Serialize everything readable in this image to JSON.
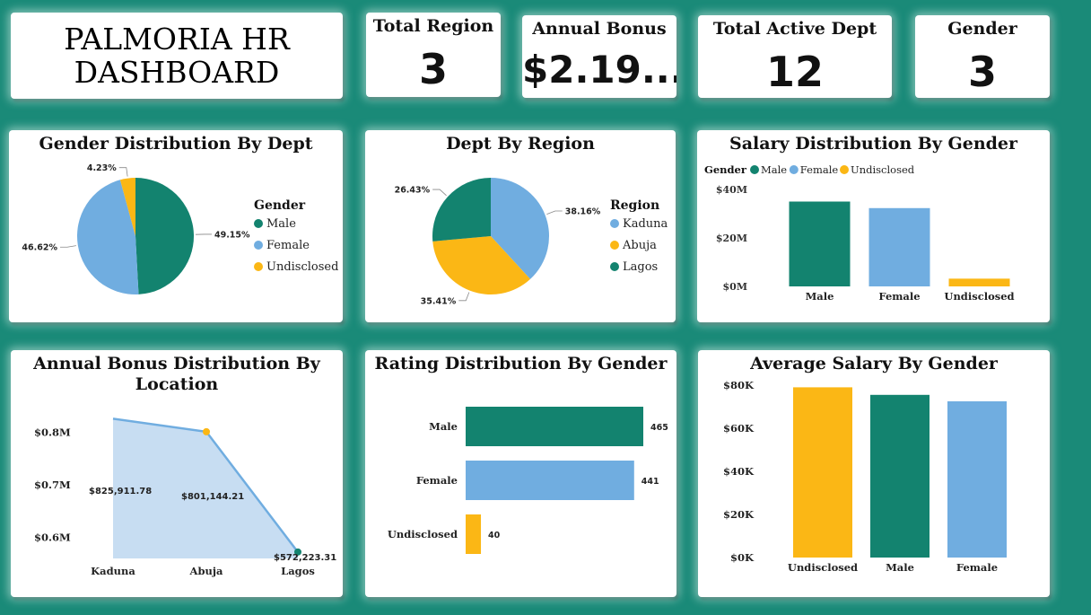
{
  "dashboard_title": "PALMORIA HR DASHBOARD",
  "colors": {
    "male": "#13836f",
    "female": "#70ade0",
    "undisclosed": "#fbb715",
    "kaduna": "#70ade0",
    "abuja": "#fbb715",
    "lagos": "#13836f",
    "area_fill": "#c7ddf2",
    "line": "#70ade0"
  },
  "kpis": [
    {
      "label": "Total Region",
      "value": "3"
    },
    {
      "label": "Annual Bonus",
      "value": "$2.19..."
    },
    {
      "label": "Total Active Dept",
      "value": "12"
    },
    {
      "label": "Gender",
      "value": "3"
    }
  ],
  "chart_data": [
    {
      "type": "pie",
      "title": "Gender Distribution By Dept",
      "legend_title": "Gender",
      "legend_placement": "right",
      "slices": [
        {
          "label": "Male",
          "value": 49.15,
          "value_label": "49.15%"
        },
        {
          "label": "Female",
          "value": 46.62,
          "value_label": "46.62%"
        },
        {
          "label": "Undisclosed",
          "value": 4.23,
          "value_label": "4.23%"
        }
      ]
    },
    {
      "type": "pie",
      "title": "Dept By Region",
      "legend_title": "Region",
      "legend_placement": "right",
      "slices": [
        {
          "label": "Kaduna",
          "value": 38.16,
          "value_label": "38.16%"
        },
        {
          "label": "Abuja",
          "value": 35.41,
          "value_label": "35.41%"
        },
        {
          "label": "Lagos",
          "value": 26.43,
          "value_label": "26.43%"
        }
      ]
    },
    {
      "type": "bar",
      "title": "Salary Distribution By Gender",
      "legend_title": "Gender",
      "legend_placement": "top-left",
      "categories": [
        "Male",
        "Female",
        "Undisclosed"
      ],
      "values": [
        35000000,
        32300000,
        3200000
      ],
      "ylim": [
        0,
        40000000
      ],
      "yticks": [
        {
          "value": 0,
          "label": "$0M"
        },
        {
          "value": 20000000,
          "label": "$20M"
        },
        {
          "value": 40000000,
          "label": "$40M"
        }
      ],
      "grid": false
    },
    {
      "type": "area",
      "title": "Annual Bonus Distribution By Location",
      "categories": [
        "Kaduna",
        "Abuja",
        "Lagos"
      ],
      "values": [
        825911.78,
        801144.21,
        572223.31
      ],
      "value_labels": [
        "$825,911.78",
        "$801,144.21",
        "$572,223.31"
      ],
      "ylim": [
        560000,
        830000
      ],
      "yticks": [
        {
          "value": 600000,
          "label": "$0.6M"
        },
        {
          "value": 700000,
          "label": "$0.7M"
        },
        {
          "value": 800000,
          "label": "$0.8M"
        }
      ],
      "grid": false
    },
    {
      "type": "bar",
      "orientation": "horizontal",
      "title": "Rating Distribution By Gender",
      "categories": [
        "Male",
        "Female",
        "Undisclosed"
      ],
      "values": [
        465,
        441,
        40
      ],
      "value_labels": [
        "465",
        "441",
        "40"
      ],
      "grid": false
    },
    {
      "type": "bar",
      "title": "Average Salary By Gender",
      "categories": [
        "Undisclosed",
        "Male",
        "Female"
      ],
      "values": [
        79000,
        75500,
        72500
      ],
      "ylim": [
        0,
        80000
      ],
      "yticks": [
        {
          "value": 0,
          "label": "$0K"
        },
        {
          "value": 20000,
          "label": "$20K"
        },
        {
          "value": 40000,
          "label": "$40K"
        },
        {
          "value": 60000,
          "label": "$60K"
        },
        {
          "value": 80000,
          "label": "$80K"
        }
      ],
      "grid": false
    }
  ]
}
